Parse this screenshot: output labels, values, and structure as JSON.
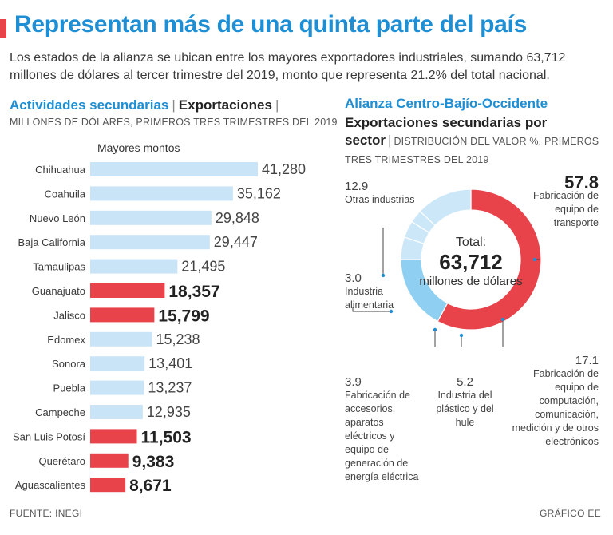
{
  "headline": "Representan más de una quinta parte del país",
  "intro": "Los estados de la alianza se ubican entre los mayores exportadores industriales, sumando 63,712 millones de dólares al tercer trimestre del 2019, monto que representa 21.2% del total nacional.",
  "left_header": {
    "part1": "Actividades secundarias",
    "separator": "|",
    "part2": "Exportaciones",
    "separator2": "|",
    "subtitle": "MILLONES DE DÓLARES, PRIMEROS TRES TRIMESTRES DEL 2019"
  },
  "right_header": {
    "title": "Alianza Centro-Bajío-Occidente",
    "subtitle_bold": "Exportaciones secundarias por sector",
    "separator": "|",
    "subtitle_small": "DISTRIBUCIÓN DEL VALOR %, PRIMEROS TRES TRIMESTRES DEL 2019"
  },
  "colors": {
    "accent_blue": "#1e8fd4",
    "bar_default": "#c9e4f7",
    "bar_highlight": "#e8434a",
    "donut_light": "#cce7f8",
    "donut_mid": "#8fd0f2"
  },
  "chart_data": [
    {
      "type": "bar",
      "orientation": "horizontal",
      "title": "Mayores montos",
      "unit": "millones de dólares",
      "categories": [
        "Chihuahua",
        "Coahuila",
        "Nuevo León",
        "Baja California",
        "Tamaulipas",
        "Guanajuato",
        "Jalisco",
        "Edomex",
        "Sonora",
        "Puebla",
        "Campeche",
        "San Luis Potosí",
        "Querétaro",
        "Aguascalientes"
      ],
      "values": [
        41280,
        35162,
        29848,
        29447,
        21495,
        18357,
        15799,
        15238,
        13401,
        13237,
        12935,
        11503,
        9383,
        8671
      ],
      "labels": [
        "41,280",
        "35,162",
        "29,848",
        "29,447",
        "21,495",
        "18,357",
        "15,799",
        "15,238",
        "13,401",
        "13,237",
        "12,935",
        "11,503",
        "9,383",
        "8,671"
      ],
      "highlighted": [
        false,
        false,
        false,
        false,
        false,
        true,
        true,
        false,
        false,
        false,
        false,
        true,
        true,
        true
      ]
    },
    {
      "type": "pie",
      "variant": "donut",
      "title": "Exportaciones secundarias por sector",
      "center_label": {
        "prefix": "Total:",
        "value": "63,712",
        "unit": "millones de dólares"
      },
      "slices": [
        {
          "value": 57.8,
          "label": "57.8",
          "name": "Fabricación de equipo de transporte",
          "color": "#e8434a"
        },
        {
          "value": 17.1,
          "label": "17.1",
          "name": "Fabricación de equipo de computación, comunicación, medición y de otros electrónicos",
          "color": "#8fd0f2"
        },
        {
          "value": 5.2,
          "label": "5.2",
          "name": "Industria del plástico y del hule",
          "color": "#cce7f8"
        },
        {
          "value": 3.9,
          "label": "3.9",
          "name": "Fabricación de accesorios, aparatos eléctricos y equipo de generación de energía eléctrica",
          "color": "#cce7f8"
        },
        {
          "value": 3.0,
          "label": "3.0",
          "name": "Industria alimentaria",
          "color": "#cce7f8"
        },
        {
          "value": 12.9,
          "label": "12.9",
          "name": "Otras industrias",
          "color": "#cce7f8"
        }
      ]
    }
  ],
  "footer": {
    "source": "FUENTE: INEGI",
    "credit": "GRÁFICO EE"
  }
}
